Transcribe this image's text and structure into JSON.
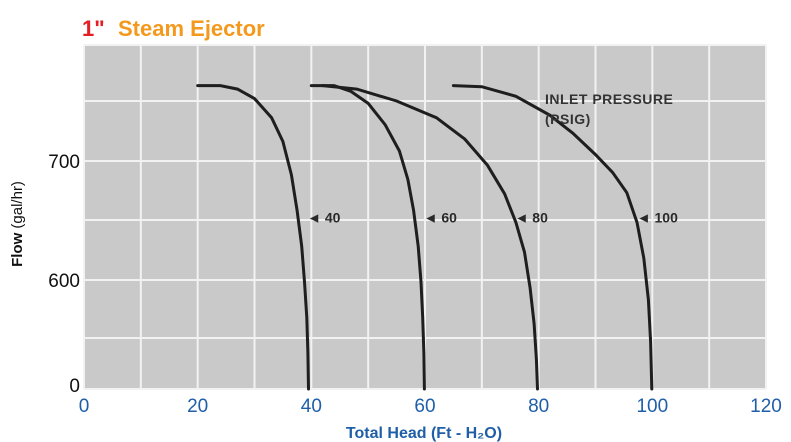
{
  "title": {
    "size": "1\"",
    "name": "Steam Ejector"
  },
  "colors": {
    "plot_bg": "#c9c9c9",
    "grid": "#f2f2f2",
    "curve": "#1e1e1e",
    "title_size": "#e31e24",
    "title_name": "#f39a1e",
    "x_axis_text": "#1f5fa8"
  },
  "chart_data": {
    "type": "line",
    "title": "1\" Steam Ejector",
    "xlabel": "Total Head (Ft - H₂O)",
    "ylabel": {
      "bold": "Flow",
      "normal": " (gal/hr)"
    },
    "xlim": [
      0,
      120
    ],
    "x_ticks": [
      0,
      20,
      40,
      60,
      80,
      100,
      120
    ],
    "y_ticks": [
      0,
      600,
      700
    ],
    "grid": true,
    "legend_title": [
      "INLET PRESSURE",
      "(PSIG)"
    ],
    "series": [
      {
        "name": "40",
        "label": "◄ 40",
        "points": [
          [
            20,
            695
          ],
          [
            24,
            695
          ],
          [
            27,
            692
          ],
          [
            30,
            684
          ],
          [
            33,
            668
          ],
          [
            35,
            648
          ],
          [
            36.5,
            620
          ],
          [
            37.5,
            590
          ],
          [
            38.3,
            560
          ],
          [
            38.8,
            530
          ],
          [
            39.2,
            500
          ],
          [
            39.4,
            470
          ],
          [
            39.5,
            440
          ]
        ]
      },
      {
        "name": "60",
        "label": "◄ 60",
        "points": [
          [
            40,
            695
          ],
          [
            44,
            695
          ],
          [
            47,
            690
          ],
          [
            50,
            680
          ],
          [
            53,
            662
          ],
          [
            55.5,
            640
          ],
          [
            57,
            616
          ],
          [
            58,
            590
          ],
          [
            58.8,
            560
          ],
          [
            59.3,
            530
          ],
          [
            59.6,
            500
          ],
          [
            59.8,
            470
          ],
          [
            59.9,
            440
          ]
        ]
      },
      {
        "name": "80",
        "label": "◄ 80",
        "points": [
          [
            42,
            695
          ],
          [
            48,
            692
          ],
          [
            55,
            682
          ],
          [
            62,
            668
          ],
          [
            67,
            650
          ],
          [
            71,
            628
          ],
          [
            74,
            604
          ],
          [
            76,
            580
          ],
          [
            77.5,
            555
          ],
          [
            78.5,
            525
          ],
          [
            79.2,
            495
          ],
          [
            79.6,
            465
          ],
          [
            79.8,
            440
          ]
        ]
      },
      {
        "name": "100",
        "label": "◄ 100",
        "points": [
          [
            65,
            695
          ],
          [
            70,
            694
          ],
          [
            76,
            686
          ],
          [
            82,
            670
          ],
          [
            86,
            655
          ],
          [
            90,
            637
          ],
          [
            93,
            622
          ],
          [
            95.5,
            605
          ],
          [
            97.3,
            580
          ],
          [
            98.5,
            550
          ],
          [
            99.3,
            515
          ],
          [
            99.7,
            480
          ],
          [
            99.9,
            440
          ]
        ]
      }
    ]
  }
}
